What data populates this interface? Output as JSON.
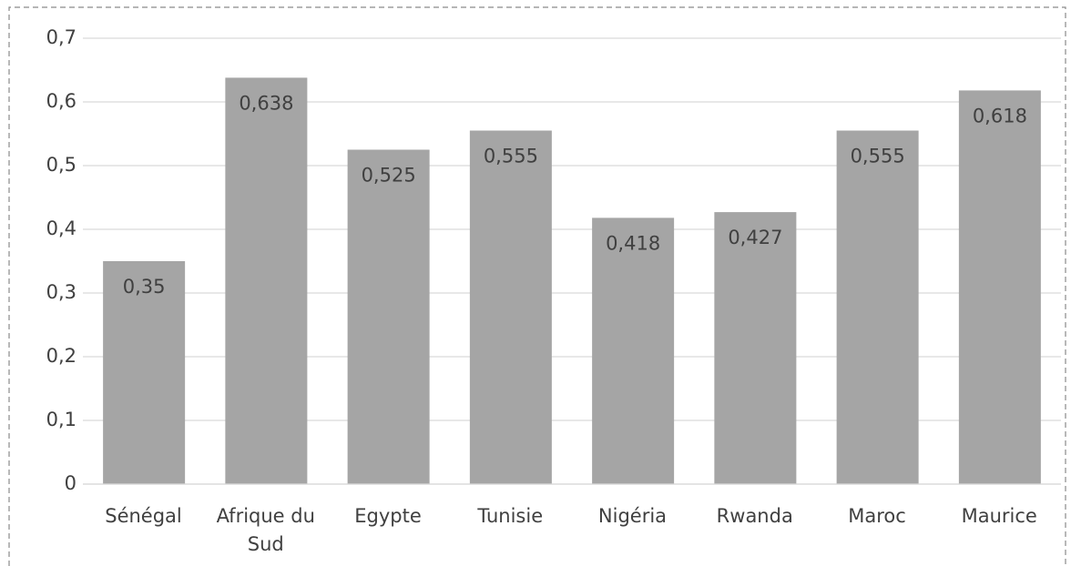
{
  "chart_data": {
    "type": "bar",
    "categories": [
      "Sénégal",
      "Afrique du Sud",
      "Egypte",
      "Tunisie",
      "Nigéria",
      "Rwanda",
      "Maroc",
      "Maurice"
    ],
    "values": [
      0.35,
      0.638,
      0.525,
      0.555,
      0.418,
      0.427,
      0.555,
      0.618
    ],
    "value_labels": [
      "0,35",
      "0,638",
      "0,525",
      "0,555",
      "0,418",
      "0,427",
      "0,555",
      "0,618"
    ],
    "color": "#a5a5a5",
    "ylim": [
      0,
      0.7
    ],
    "yticks": [
      0,
      {
        "value": 0.1,
        "label": "0,1"
      },
      {
        "value": 0.2,
        "label": "0,2"
      },
      {
        "value": 0.3,
        "label": "0,3"
      },
      {
        "value": 0.4,
        "label": "0,4"
      },
      {
        "value": 0.5,
        "label": "0,5"
      },
      {
        "value": 0.6,
        "label": "0,6"
      },
      {
        "value": 0.7,
        "label": "0,7"
      }
    ],
    "grid": true
  }
}
